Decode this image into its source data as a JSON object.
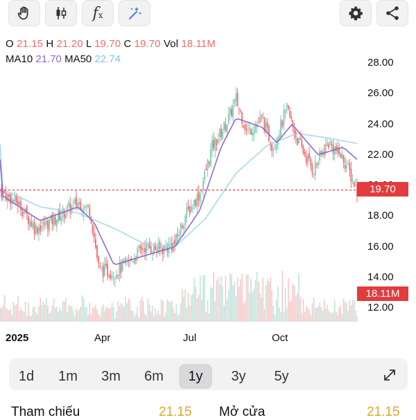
{
  "toolbar": {
    "left_tools": [
      {
        "icon": "hand-icon"
      },
      {
        "icon": "candlestick-icon"
      },
      {
        "icon": "function-icon",
        "label": "f",
        "sub": "x"
      },
      {
        "icon": "magic-sparkle-icon"
      }
    ],
    "right_tools": [
      {
        "icon": "gear-icon"
      },
      {
        "icon": "share-icon"
      }
    ]
  },
  "legend": {
    "o_label": "O",
    "o_value": "21.15",
    "h_label": "H",
    "h_value": "21.20",
    "l_label": "L",
    "l_value": "19.70",
    "c_label": "C",
    "c_value": "19.70",
    "vol_label": "Vol",
    "vol_value": "18.11M",
    "ma10_label": "MA10",
    "ma10_value": "21.70",
    "ma50_label": "MA50",
    "ma50_value": "22.74"
  },
  "colors": {
    "up": "#7dc9b8",
    "down": "#ef6b6b",
    "ma10": "#8e6cc9",
    "ma50": "#a9d8ef",
    "price_line": "#e23c3c"
  },
  "chart_data": {
    "type": "candlestick",
    "y_ticks": [
      "28.00",
      "26.00",
      "24.00",
      "22.00",
      "20.00",
      "18.00",
      "16.00",
      "14.00",
      "12.00"
    ],
    "ylim": [
      12,
      28
    ],
    "x_ticks": [
      "2025",
      "Apr",
      "Jul",
      "Oct"
    ],
    "last_price_tag": "19.70",
    "volume_tag": "18.11M",
    "close_path": [
      {
        "date": "2025-01-02",
        "close": 19.6
      },
      {
        "date": "2025-01-20",
        "close": 18.8
      },
      {
        "date": "2025-02-05",
        "close": 17.2
      },
      {
        "date": "2025-02-20",
        "close": 17.6
      },
      {
        "date": "2025-03-05",
        "close": 18.2
      },
      {
        "date": "2025-03-20",
        "close": 18.9
      },
      {
        "date": "2025-04-01",
        "close": 18.4
      },
      {
        "date": "2025-04-10",
        "close": 14.5
      },
      {
        "date": "2025-04-25",
        "close": 14.3
      },
      {
        "date": "2025-05-10",
        "close": 15.0
      },
      {
        "date": "2025-05-25",
        "close": 16.0
      },
      {
        "date": "2025-06-10",
        "close": 15.8
      },
      {
        "date": "2025-06-25",
        "close": 16.2
      },
      {
        "date": "2025-07-05",
        "close": 18.0
      },
      {
        "date": "2025-07-20",
        "close": 19.5
      },
      {
        "date": "2025-08-01",
        "close": 22.5
      },
      {
        "date": "2025-08-15",
        "close": 24.0
      },
      {
        "date": "2025-08-25",
        "close": 25.6
      },
      {
        "date": "2025-09-05",
        "close": 23.5
      },
      {
        "date": "2025-09-20",
        "close": 24.3
      },
      {
        "date": "2025-10-01",
        "close": 22.5
      },
      {
        "date": "2025-10-15",
        "close": 25.0
      },
      {
        "date": "2025-10-25",
        "close": 23.0
      },
      {
        "date": "2025-11-10",
        "close": 21.0
      },
      {
        "date": "2025-11-25",
        "close": 22.8
      },
      {
        "date": "2025-12-10",
        "close": 21.8
      },
      {
        "date": "2025-12-24",
        "close": 19.7
      }
    ],
    "ma10_path": [
      {
        "date": "2025-01-02",
        "value": 19.4
      },
      {
        "date": "2025-02-10",
        "value": 17.7
      },
      {
        "date": "2025-03-20",
        "value": 18.6
      },
      {
        "date": "2025-04-05",
        "value": 17.6
      },
      {
        "date": "2025-04-25",
        "value": 14.8
      },
      {
        "date": "2025-05-25",
        "value": 15.4
      },
      {
        "date": "2025-06-25",
        "value": 16.0
      },
      {
        "date": "2025-07-20",
        "value": 18.4
      },
      {
        "date": "2025-08-10",
        "value": 22.5
      },
      {
        "date": "2025-08-25",
        "value": 24.4
      },
      {
        "date": "2025-09-20",
        "value": 23.8
      },
      {
        "date": "2025-10-05",
        "value": 22.8
      },
      {
        "date": "2025-10-20",
        "value": 24.0
      },
      {
        "date": "2025-11-15",
        "value": 22.0
      },
      {
        "date": "2025-12-10",
        "value": 22.5
      },
      {
        "date": "2025-12-24",
        "value": 21.7
      }
    ],
    "ma50_path": [
      {
        "date": "2025-01-02",
        "value": 19.8
      },
      {
        "date": "2025-02-10",
        "value": 18.6
      },
      {
        "date": "2025-03-20",
        "value": 18.2
      },
      {
        "date": "2025-04-25",
        "value": 17.2
      },
      {
        "date": "2025-05-25",
        "value": 16.2
      },
      {
        "date": "2025-06-25",
        "value": 16.0
      },
      {
        "date": "2025-07-25",
        "value": 17.8
      },
      {
        "date": "2025-08-25",
        "value": 20.8
      },
      {
        "date": "2025-09-25",
        "value": 22.6
      },
      {
        "date": "2025-10-25",
        "value": 23.4
      },
      {
        "date": "2025-11-25",
        "value": 23.1
      },
      {
        "date": "2025-12-24",
        "value": 22.74
      }
    ]
  },
  "timeframes": [
    "1d",
    "1m",
    "3m",
    "6m",
    "1y",
    "3y",
    "5y"
  ],
  "selected_timeframe": "1y",
  "footer": {
    "ref_label": "Tham chiếu",
    "ref_value": "21.15",
    "open_label": "Mở cửa",
    "open_value": "21.15"
  }
}
